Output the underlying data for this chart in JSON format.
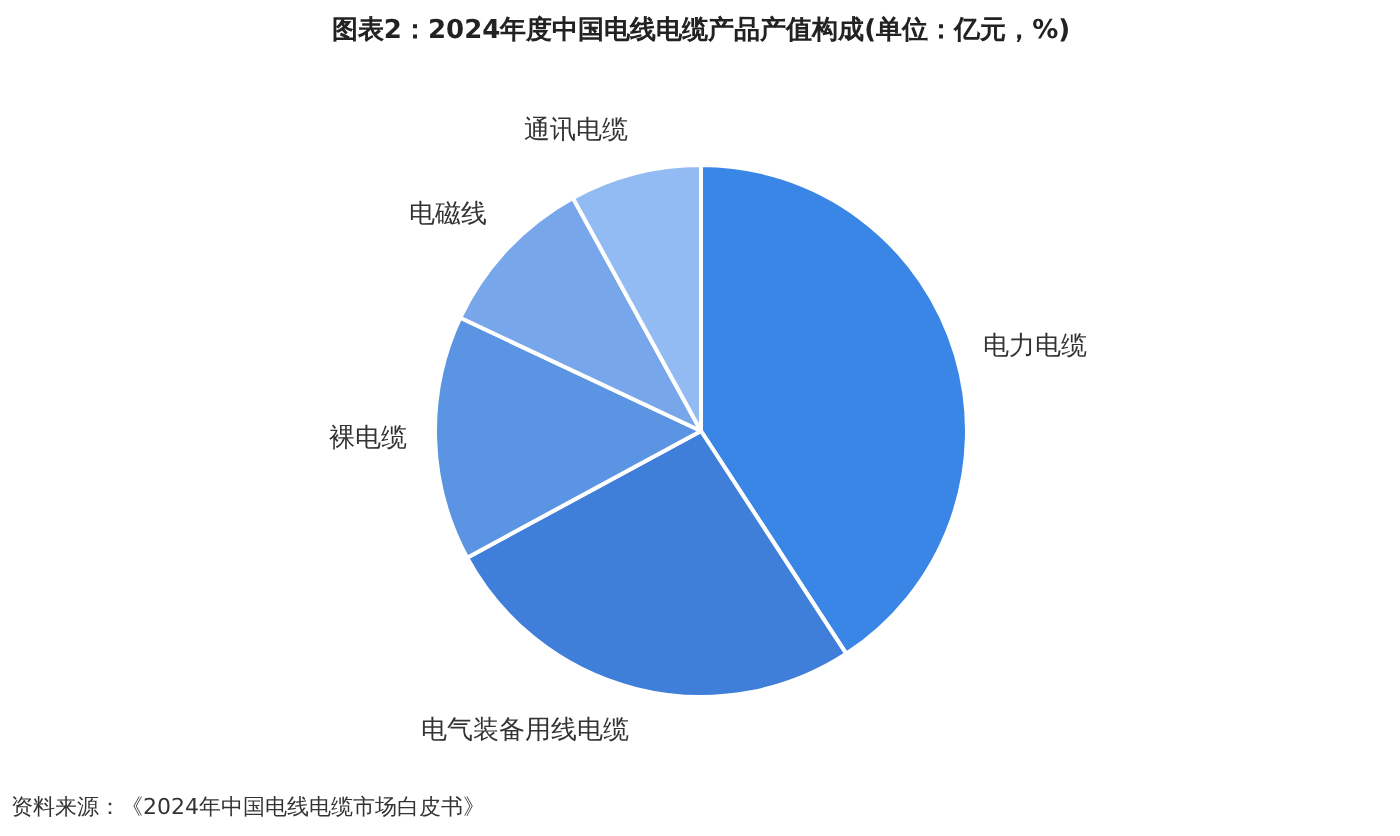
{
  "chart_data": {
    "type": "pie",
    "title": "图表2：2024年度中国电线电缆产品产值构成(单位：亿元，%)",
    "categories": [
      "电力电缆",
      "电气装备用线电缆",
      "裸电缆",
      "电磁线",
      "通讯电缆"
    ],
    "values": [
      40.8,
      26.3,
      14.9,
      10.0,
      8.0
    ],
    "colors": [
      "#3a86e6",
      "#3f7fd9",
      "#5a94e2",
      "#77a6ea",
      "#93bbf3"
    ],
    "annotations": [
      "资料来源：《2024年中国电线电缆市场白皮书》"
    ]
  }
}
